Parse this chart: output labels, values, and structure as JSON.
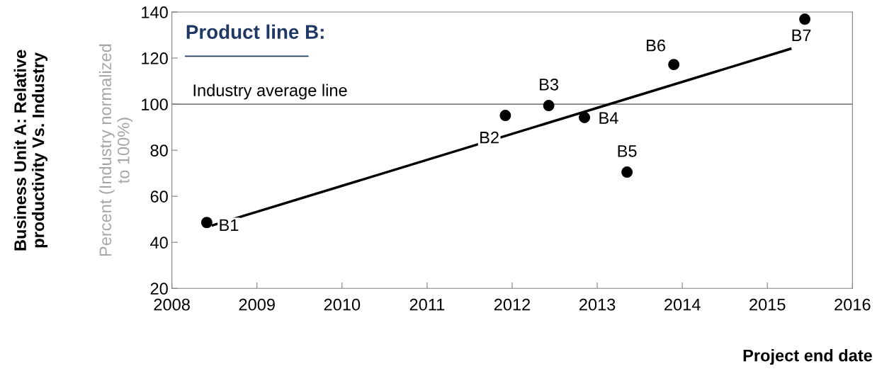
{
  "chart_data": {
    "type": "scatter",
    "title": "Product line B:",
    "xlabel": "Project end date",
    "ylabel": "Percent (Industry normalized\nto 100%)",
    "annotations": [
      "Business Unit A: Relative\nproductivity Vs. Industry",
      {
        "text": "B1",
        "x": 2008.41,
        "y": 48.6
      },
      {
        "text": "B2",
        "x": 2011.92,
        "y": 95.1
      },
      {
        "text": "B3",
        "x": 2012.43,
        "y": 99.4
      },
      {
        "text": "B4",
        "x": 2012.85,
        "y": 94.2
      },
      {
        "text": "B5",
        "x": 2013.35,
        "y": 70.5
      },
      {
        "text": "B6",
        "x": 2013.9,
        "y": 117.2
      },
      {
        "text": "B7",
        "x": 2015.44,
        "y": 136.9
      }
    ],
    "series": [
      {
        "color": "#000000",
        "marker": "circle",
        "x": [
          2008.41,
          2011.92,
          2012.43,
          2012.85,
          2013.35,
          2013.9,
          2015.44
        ],
        "values": [
          48.6,
          95.1,
          99.4,
          94.2,
          70.5,
          117.2,
          136.9
        ]
      },
      {
        "type": "line",
        "color": "#000000",
        "marker": "none",
        "x": [
          2008.48,
          2015.27
        ],
        "values": [
          47.4,
          124
        ]
      }
    ],
    "ref_lines": [
      {
        "axis": "y",
        "value": 100,
        "label": "Industry average line",
        "color": "#808080"
      }
    ],
    "xlim": [
      2008,
      2016
    ],
    "xticks": [
      2008,
      2009,
      2010,
      2011,
      2012,
      2013,
      2014,
      2015,
      2016
    ],
    "ylim": [
      20,
      140
    ],
    "yticks": [
      20,
      40,
      60,
      80,
      100,
      120,
      140
    ],
    "grid": false,
    "legend": false
  }
}
